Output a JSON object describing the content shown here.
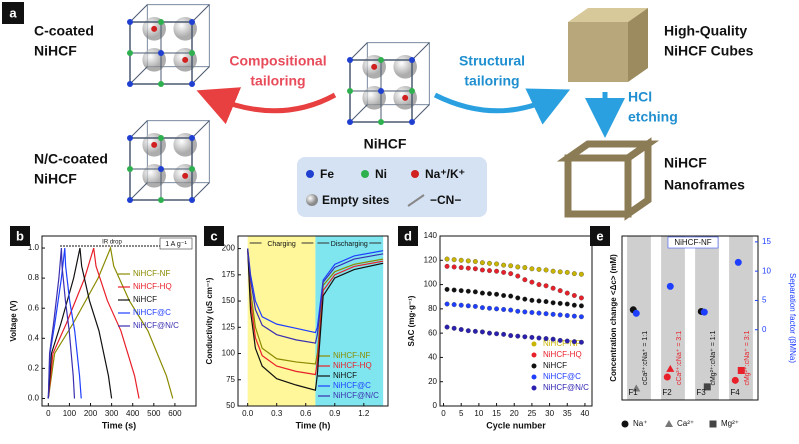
{
  "panel_a": {
    "label": "a",
    "c_coated": [
      "C-coated",
      "NiHCF"
    ],
    "nc_coated": [
      "N/C-coated",
      "NiHCF"
    ],
    "compositional": [
      "Compositional",
      "tailoring"
    ],
    "center": "NiHCF",
    "structural": [
      "Structural",
      "tailoring"
    ],
    "cubes": [
      "High-Quality",
      "NiHCF Cubes"
    ],
    "etching": [
      "HCl",
      "etching"
    ],
    "nanoframes": [
      "NiHCF",
      "Nanoframes"
    ],
    "legend": {
      "fe": "Fe",
      "ni": "Ni",
      "nak": "Na⁺/K⁺",
      "empty": "Empty sites",
      "cn": "−CN−"
    }
  },
  "chart_data": [
    {
      "type": "line",
      "label": "b",
      "xlabel": "Time (s)",
      "ylabel": "Voltage (V)",
      "xlim": [
        -30,
        700
      ],
      "ylim": [
        -0.05,
        1.08
      ],
      "xticks": [
        0,
        100,
        200,
        300,
        400,
        500,
        600
      ],
      "yticks": [
        {
          "value": 0,
          "label": "0.0"
        },
        0.2,
        0.4,
        0.6,
        0.8,
        {
          "value": 1,
          "label": "1.0"
        }
      ],
      "annotations": [
        "IR drop",
        "1 A g⁻¹"
      ],
      "series": [
        {
          "name": "NiHCF-NF",
          "color": "#8a8a00",
          "x": [
            0,
            30,
            118,
            236,
            295,
            310,
            384,
            472,
            560,
            590
          ],
          "values": [
            0,
            0.3,
            0.5,
            0.8,
            1.0,
            0.88,
            0.65,
            0.45,
            0.15,
            0
          ]
        },
        {
          "name": "NiHCF-HQ",
          "color": "#e8202a",
          "x": [
            0,
            22,
            86,
            172,
            215,
            226,
            280,
            344,
            409,
            430
          ],
          "values": [
            0,
            0.3,
            0.5,
            0.8,
            1.0,
            0.88,
            0.65,
            0.45,
            0.15,
            0
          ]
        },
        {
          "name": "NiHCF",
          "color": "#111111",
          "x": [
            0,
            15,
            60,
            120,
            150,
            158,
            195,
            240,
            285,
            300
          ],
          "values": [
            0,
            0.3,
            0.5,
            0.8,
            1.0,
            0.88,
            0.65,
            0.45,
            0.15,
            0
          ]
        },
        {
          "name": "NiHCF@C",
          "color": "#1f3fff",
          "x": [
            0,
            8,
            31,
            62,
            78,
            82,
            101,
            125,
            148,
            156
          ],
          "values": [
            0,
            0.3,
            0.5,
            0.8,
            1.0,
            0.88,
            0.65,
            0.45,
            0.15,
            0
          ]
        },
        {
          "name": "NiHCF@N/C",
          "color": "#3a2fb0",
          "x": [
            0,
            6,
            25,
            50,
            62,
            65,
            81,
            99,
            118,
            124
          ],
          "values": [
            0,
            0.3,
            0.5,
            0.8,
            1.0,
            0.88,
            0.65,
            0.45,
            0.15,
            0
          ]
        }
      ]
    },
    {
      "type": "line",
      "label": "c",
      "xlabel": "Time (h)",
      "ylabel": "Conductivity (uS cm⁻¹)",
      "xlim": [
        -0.1,
        1.45
      ],
      "ylim": [
        50,
        212
      ],
      "xticks": [
        {
          "value": 0,
          "label": "0.0"
        },
        0.3,
        0.6,
        0.9,
        1.2
      ],
      "yticks": [
        50,
        75,
        100,
        125,
        150,
        175,
        200
      ],
      "regions": [
        {
          "text": "Charging",
          "x": [
            0,
            0.7
          ],
          "color": "#fff799"
        },
        {
          "text": "Discharging",
          "x": [
            0.7,
            1.4
          ],
          "color": "#7fe6ef"
        }
      ],
      "x": [
        0,
        0.03,
        0.08,
        0.15,
        0.3,
        0.5,
        0.7,
        0.72,
        0.78,
        0.9,
        1.1,
        1.4
      ],
      "series": [
        {
          "name": "NiHCF-NF",
          "color": "#8a8a00",
          "values": [
            200,
            160,
            125,
            105,
            95,
            92,
            90,
            100,
            165,
            178,
            185,
            190
          ]
        },
        {
          "name": "NiHCF-HQ",
          "color": "#e8202a",
          "values": [
            200,
            150,
            115,
            98,
            88,
            83,
            80,
            92,
            160,
            175,
            183,
            188
          ]
        },
        {
          "name": "NiHCF",
          "color": "#111111",
          "values": [
            200,
            140,
            105,
            88,
            76,
            70,
            65,
            80,
            155,
            172,
            180,
            186
          ]
        },
        {
          "name": "NiHCF@C",
          "color": "#1f3fff",
          "values": [
            200,
            175,
            150,
            135,
            128,
            124,
            120,
            125,
            170,
            185,
            193,
            198
          ]
        },
        {
          "name": "NiHCF@N/C",
          "color": "#3a2fb0",
          "values": [
            200,
            170,
            142,
            127,
            118,
            113,
            110,
            118,
            168,
            182,
            190,
            195
          ]
        }
      ]
    },
    {
      "type": "scatter",
      "label": "d",
      "xlabel": "Cycle number",
      "ylabel": "SAC (mg·g⁻¹)",
      "xlim": [
        -1,
        42
      ],
      "ylim": [
        0,
        140
      ],
      "xticks": [
        0,
        5,
        10,
        15,
        20,
        25,
        30,
        35,
        40
      ],
      "yticks": [
        0,
        20,
        40,
        60,
        80,
        100,
        120,
        140
      ],
      "x": [
        1,
        3,
        5,
        7,
        9,
        11,
        13,
        15,
        17,
        19,
        21,
        23,
        25,
        27,
        29,
        31,
        33,
        35,
        37,
        39
      ],
      "series": [
        {
          "name": "NiHCF-NF",
          "color": "#c9b400",
          "values": [
            121,
            120.5,
            120,
            119.5,
            119,
            118,
            117.5,
            117,
            116,
            115.5,
            114.5,
            114,
            113,
            112.5,
            112,
            111,
            110.5,
            110,
            109,
            108.5
          ]
        },
        {
          "name": "NiHCF-HQ",
          "color": "#e8202a",
          "values": [
            115,
            114.5,
            114,
            113.5,
            113,
            112,
            111.5,
            111,
            110,
            109,
            107,
            104,
            102,
            100,
            99,
            97,
            95,
            93,
            91,
            89
          ]
        },
        {
          "name": "NiHCF",
          "color": "#111111",
          "values": [
            96,
            95.5,
            95,
            94.5,
            94,
            93,
            92.5,
            92,
            91,
            90.5,
            89,
            88,
            87,
            86.5,
            86,
            85,
            84.5,
            84,
            83,
            82.5
          ]
        },
        {
          "name": "NiHCF@C",
          "color": "#1f3fff",
          "values": [
            84,
            83.5,
            83,
            82.5,
            82,
            81,
            80.5,
            80,
            79.5,
            79,
            78,
            77.5,
            77,
            76.5,
            76,
            75.5,
            75,
            74.5,
            74,
            73.5
          ]
        },
        {
          "name": "NiHCF@N/C",
          "color": "#2b1fb0",
          "values": [
            65,
            64,
            63,
            62,
            61.5,
            61,
            60,
            59.5,
            59,
            58,
            57.5,
            57,
            56.5,
            56,
            55.5,
            55,
            54,
            53.5,
            53,
            52.5
          ]
        }
      ]
    },
    {
      "type": "scatter",
      "label": "e",
      "ylabel": "Concentration change <Δc> (mM)",
      "y2label": "Separation factor (βMNa)",
      "categories": [
        "F1",
        "F2",
        "F3",
        "F4"
      ],
      "ylim": [
        0,
        10
      ],
      "y2lim": [
        -12,
        16
      ],
      "y2ticks": [
        0,
        5,
        10,
        15
      ],
      "annotations": [
        "NiHCF-NF"
      ],
      "ratios": [
        "cCa²⁺:cNa⁺ = 1:1",
        "cCa²⁺:cNa⁺ = 3:1",
        "cMg²⁺:cNa⁺ = 1:1",
        "cMg²⁺:cNa⁺ = 3:1"
      ],
      "series": [
        {
          "name": "Na⁺",
          "marker": "circle",
          "colors": [
            "#111111",
            "#e8202a",
            "#111111",
            "#e8202a"
          ],
          "values": [
            5.5,
            1.4,
            5.4,
            1.2
          ]
        },
        {
          "name": "Ca²⁺",
          "marker": "triangle",
          "colors": [
            "#777777",
            "#e8202a",
            null,
            null
          ],
          "values": [
            0.7,
            1.9,
            null,
            null
          ]
        },
        {
          "name": "Mg²⁺",
          "marker": "square",
          "colors": [
            null,
            null,
            "#444444",
            "#e8202a"
          ],
          "values": [
            null,
            null,
            0.8,
            1.8
          ]
        },
        {
          "axis": "y2",
          "marker": "circle",
          "color": "#1f3fff",
          "values": [
            2.8,
            7.4,
            3,
            11.5
          ]
        }
      ]
    }
  ]
}
